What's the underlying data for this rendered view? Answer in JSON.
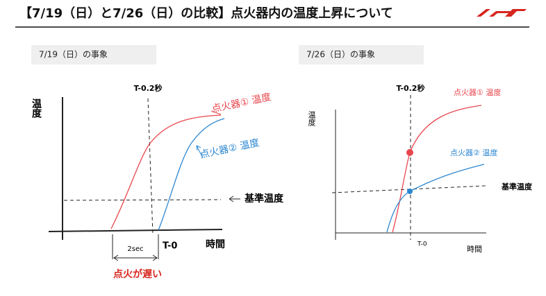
{
  "header": {
    "title": "【7/19（日）と7/26（日）の比較】点火器内の温度上昇について"
  },
  "left": {
    "heading": "7/19（日）の事象",
    "marker": "T-0.2秒",
    "y_axis": "温度",
    "curve1": "点火器① 温度",
    "curve2": "点火器② 温度",
    "reference": "基準温度",
    "gap": "2sec",
    "t0": "T-0",
    "x_axis": "時間",
    "note": "点火が遅い"
  },
  "right": {
    "heading": "7/26（日）の事象",
    "marker": "T-0.2秒",
    "y_axis": "温度",
    "curve1": "点火器① 温度",
    "curve2": "点火器② 温度",
    "reference": "基準温度",
    "t0": "T-0",
    "x_axis": "時間"
  }
}
